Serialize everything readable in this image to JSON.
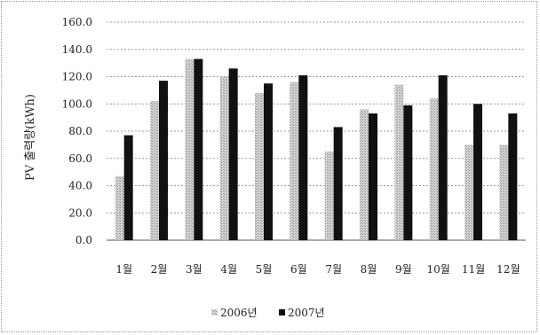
{
  "chart_data": {
    "type": "bar",
    "ylabel": "PV 출력량(kWh)",
    "ylim": [
      0,
      160
    ],
    "yticks": [
      "0.0",
      "20.0",
      "40.0",
      "60.0",
      "80.0",
      "100.0",
      "120.0",
      "140.0",
      "160.0"
    ],
    "grid": true,
    "legend_position": "bottom",
    "categories": [
      "1월",
      "2월",
      "3월",
      "4월",
      "5월",
      "6월",
      "7월",
      "8월",
      "9월",
      "10월",
      "11월",
      "12월"
    ],
    "series": [
      {
        "name": "2006년",
        "color": "#c0c0c0",
        "values": [
          47,
          102,
          133,
          120,
          108,
          116,
          65,
          96,
          114,
          104,
          70,
          70
        ]
      },
      {
        "name": "2007년",
        "color": "#111111",
        "values": [
          77,
          117,
          133,
          126,
          115,
          121,
          83,
          93,
          99,
          121,
          100,
          93
        ]
      }
    ]
  }
}
